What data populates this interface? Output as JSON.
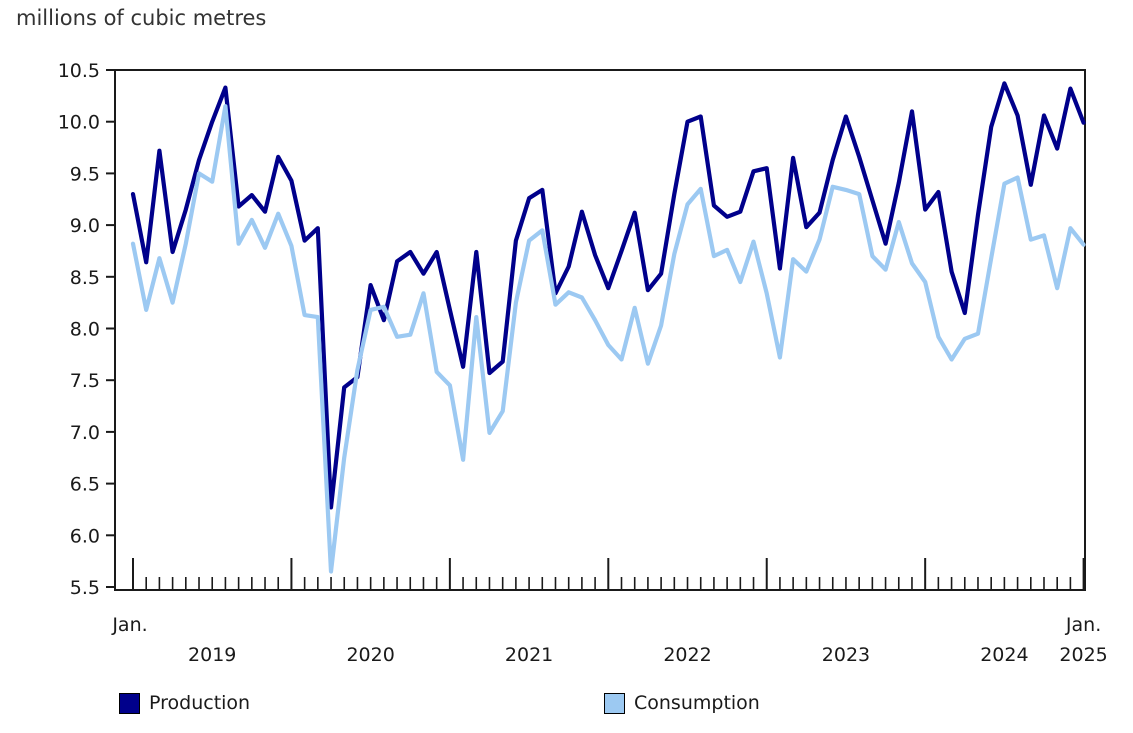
{
  "title": "millions of cubic metres",
  "colors": {
    "production": "#00008b",
    "consumption": "#9cc9f2",
    "axis": "#1a1a1a",
    "text": "#1a1a1a"
  },
  "legend": {
    "production_label": "Production",
    "consumption_label": "Consumption"
  },
  "y_axis": {
    "min": 5.5,
    "max": 10.5,
    "step": 0.5,
    "tick_labels": [
      "10.5",
      "10.0",
      "9.5",
      "9.0",
      "8.5",
      "8.0",
      "7.5",
      "7.0",
      "6.5",
      "6.0",
      "5.5"
    ]
  },
  "x_axis": {
    "first_month_label": "Jan.",
    "last_month_label": "Jan.",
    "year_labels": [
      "2019",
      "2020",
      "2021",
      "2022",
      "2023",
      "2024"
    ],
    "last_year_label": "2025",
    "months_total": 73
  },
  "chart_data": {
    "type": "line",
    "title": "millions of cubic metres",
    "x_start": "2019-01",
    "x_end": "2025-01",
    "x_frequency": "monthly",
    "ylim": [
      5.5,
      10.5
    ],
    "grid": false,
    "legend_position": "bottom",
    "series": [
      {
        "name": "Production",
        "color": "#00008b",
        "values": [
          9.3,
          8.64,
          9.72,
          8.74,
          9.15,
          9.63,
          10.0,
          10.33,
          9.18,
          9.29,
          9.13,
          9.66,
          9.43,
          8.85,
          8.97,
          6.27,
          7.43,
          7.53,
          8.42,
          8.08,
          8.65,
          8.74,
          8.53,
          8.74,
          8.18,
          7.63,
          8.74,
          7.57,
          7.68,
          8.85,
          9.26,
          9.34,
          8.34,
          8.6,
          9.13,
          8.71,
          8.39,
          8.75,
          9.12,
          8.37,
          8.53,
          9.3,
          10.0,
          10.05,
          9.19,
          9.08,
          9.13,
          9.52,
          9.55,
          8.58,
          9.65,
          8.98,
          9.12,
          9.63,
          10.05,
          9.66,
          9.24,
          8.82,
          9.41,
          10.1,
          9.15,
          9.32,
          8.55,
          8.15,
          9.1,
          9.95,
          10.37,
          10.06,
          9.39,
          10.06,
          9.74,
          10.32,
          9.99
        ]
      },
      {
        "name": "Consumption",
        "color": "#9cc9f2",
        "values": [
          8.82,
          8.18,
          8.68,
          8.25,
          8.82,
          9.5,
          9.42,
          10.15,
          8.82,
          9.05,
          8.78,
          9.11,
          8.8,
          8.13,
          8.11,
          5.65,
          6.75,
          7.6,
          8.18,
          8.21,
          7.92,
          7.94,
          8.34,
          7.58,
          7.45,
          6.73,
          8.11,
          6.99,
          7.2,
          8.25,
          8.85,
          8.95,
          8.23,
          8.35,
          8.3,
          8.08,
          7.84,
          7.7,
          8.2,
          7.66,
          8.03,
          8.72,
          9.2,
          9.35,
          8.7,
          8.76,
          8.45,
          8.84,
          8.34,
          7.72,
          8.67,
          8.55,
          8.86,
          9.37,
          9.34,
          9.3,
          8.7,
          8.57,
          9.03,
          8.63,
          8.45,
          7.92,
          7.7,
          7.9,
          7.95,
          8.68,
          9.4,
          9.46,
          8.86,
          8.9,
          8.39,
          8.97,
          8.81
        ]
      }
    ]
  }
}
